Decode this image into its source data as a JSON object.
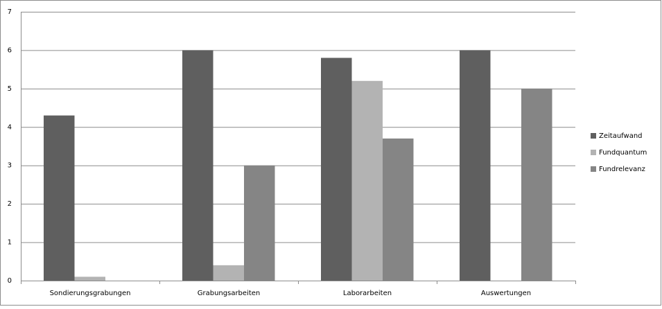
{
  "chart_data": {
    "type": "bar",
    "categories": [
      "Sondierungsgrabungen",
      "Grabungsarbeiten",
      "Laborarbeiten",
      "Auswertungen"
    ],
    "series": [
      {
        "name": "Zeitaufwand",
        "color": "#5f5f5f",
        "values": [
          4.3,
          6,
          5.8,
          6
        ]
      },
      {
        "name": "Fundquantum",
        "color": "#b3b3b3",
        "values": [
          0.1,
          0.4,
          5.2,
          0
        ]
      },
      {
        "name": "Fundrelevanz",
        "color": "#858585",
        "values": [
          0,
          3,
          3.7,
          5
        ]
      }
    ],
    "ylim": [
      0,
      7
    ],
    "yticks": [
      0,
      1,
      2,
      3,
      4,
      5,
      6,
      7
    ],
    "grid": true,
    "legend": "right"
  }
}
